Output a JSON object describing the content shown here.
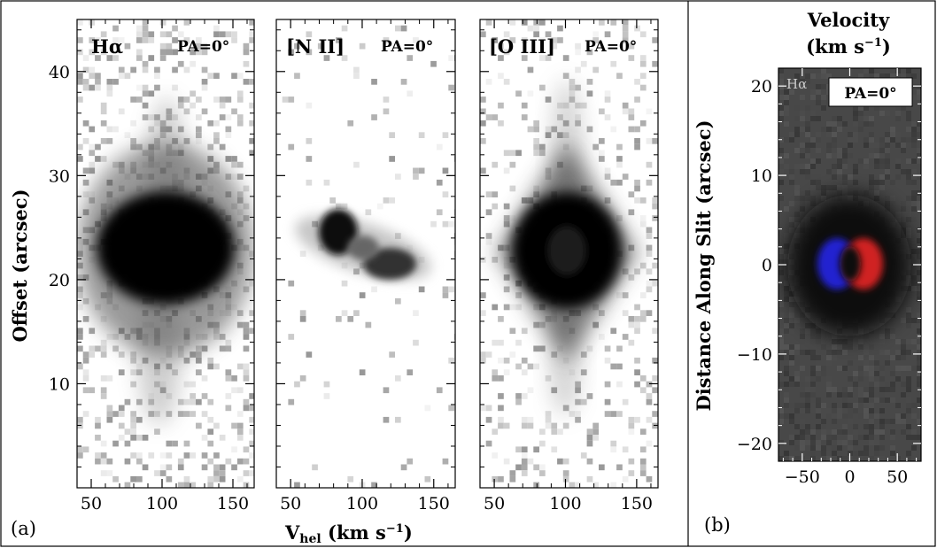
{
  "figure": {
    "panel_a_tag": "(a)",
    "panel_b_tag": "(b)",
    "shared_xlabel_main": "V",
    "shared_xlabel_sub": "hel",
    "shared_xlabel_units": " (km s",
    "shared_xlabel_exp": "−1",
    "shared_xlabel_close": ")",
    "panel_a_ylabel": "Offset (arcsec)",
    "panel_b_ylabel": "Distance Along Slit (arcsec)",
    "panel_b_title_line1": "Velocity",
    "panel_b_title_line2": "(km s",
    "panel_b_title_exp": "−1",
    "panel_b_title_close": ")"
  },
  "chart_data": [
    {
      "type": "heatmap",
      "name": "position-velocity diagram",
      "label": "Hα",
      "pa_label": "PA=0°",
      "xlim": [
        40,
        165
      ],
      "ylim": [
        0,
        45
      ],
      "xticks": [
        50,
        100,
        150
      ],
      "yticks": [
        10,
        20,
        30,
        40
      ],
      "xlabel": "Vhel (km s−1)",
      "ylabel": "Offset (arcsec)",
      "emission": {
        "center_v": 100,
        "center_offset": 22.5,
        "shape": "elliptical blob with faint vertical extensions"
      }
    },
    {
      "type": "heatmap",
      "name": "position-velocity diagram",
      "label": "[N II]",
      "pa_label": "PA=0°",
      "xlim": [
        40,
        165
      ],
      "ylim": [
        0,
        45
      ],
      "xticks": [
        50,
        100,
        150
      ],
      "xlabel": "Vhel (km s−1)",
      "emission": {
        "center_v": 100,
        "center_offset": 23,
        "shape": "tilted knotty band, brightest near 80 km/s"
      }
    },
    {
      "type": "heatmap",
      "name": "position-velocity diagram",
      "label": "[O III]",
      "pa_label": "PA=0°",
      "xlim": [
        40,
        165
      ],
      "ylim": [
        0,
        45
      ],
      "xticks": [
        50,
        100,
        150
      ],
      "xlabel": "Vhel (km s−1)",
      "emission": {
        "center_v": 100,
        "center_offset": 22.5,
        "shape": "elliptical blob with diamond-shaped halo"
      }
    },
    {
      "type": "heatmap",
      "name": "velocity map",
      "label": "Hα",
      "pa_label": "PA=0°",
      "title": "Velocity (km s−1)",
      "xlim": [
        -75,
        75
      ],
      "ylim": [
        -22,
        22
      ],
      "xticks": [
        -50,
        0,
        50
      ],
      "yticks": [
        -20,
        -10,
        0,
        10,
        20
      ],
      "ylabel": "Distance Along Slit (arcsec)",
      "ring": {
        "center_x": 0,
        "center_y": 0,
        "blue_side": "left",
        "red_side": "right"
      }
    }
  ]
}
